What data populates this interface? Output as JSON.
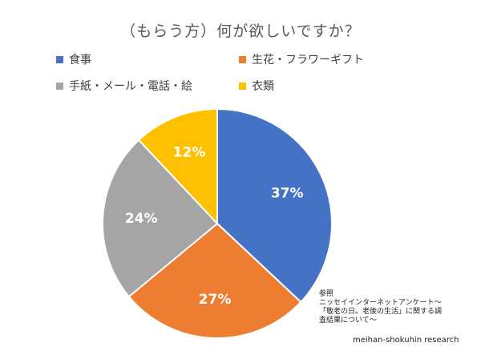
{
  "chart_data": {
    "type": "pie",
    "title": "（もらう方）何が欲しいですか？",
    "legend_position": "top",
    "slices": [
      {
        "name": "食事",
        "value": 37,
        "label": "37%",
        "color": "#4472C4"
      },
      {
        "name": "生花・フラワーギフト",
        "value": 27,
        "label": "27%",
        "color": "#ED7D31"
      },
      {
        "name": "手紙・メール・電話・絵",
        "value": 24,
        "label": "24%",
        "color": "#A5A5A5"
      },
      {
        "name": "衣類",
        "value": 12,
        "label": "12%",
        "color": "#FFC000"
      }
    ]
  },
  "source": {
    "lines": [
      "参照",
      "ニッセイインターネットアンケート～",
      "「敬老の日。老後の生活」に関する調",
      "査結果について～"
    ],
    "credit": "meihan-shokuhin research"
  }
}
